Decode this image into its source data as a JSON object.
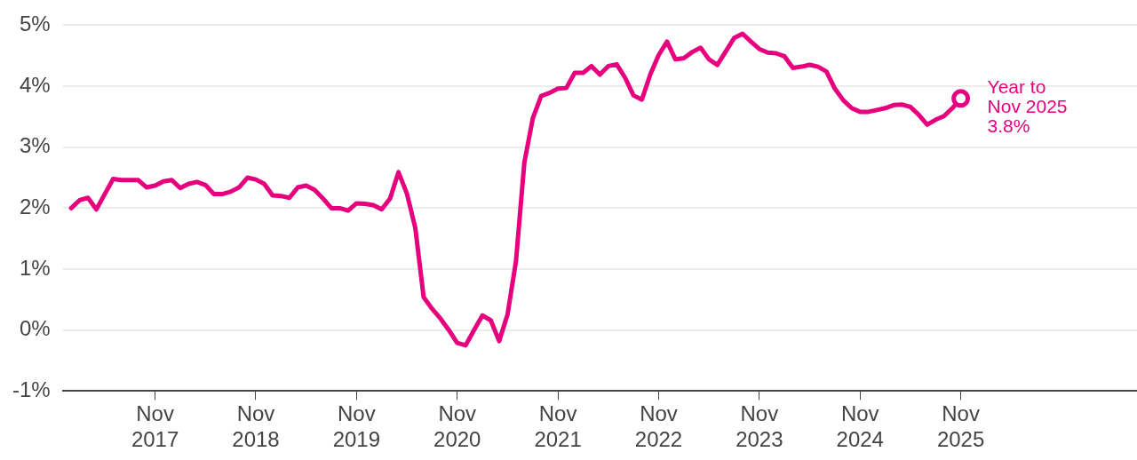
{
  "chart_data": {
    "type": "line",
    "x": [
      "2017-01",
      "2017-02",
      "2017-03",
      "2017-04",
      "2017-05",
      "2017-06",
      "2017-07",
      "2017-08",
      "2017-09",
      "2017-10",
      "2017-11",
      "2017-12",
      "2018-01",
      "2018-02",
      "2018-03",
      "2018-04",
      "2018-05",
      "2018-06",
      "2018-07",
      "2018-08",
      "2018-09",
      "2018-10",
      "2018-11",
      "2018-12",
      "2019-01",
      "2019-02",
      "2019-03",
      "2019-04",
      "2019-05",
      "2019-06",
      "2019-07",
      "2019-08",
      "2019-09",
      "2019-10",
      "2019-11",
      "2019-12",
      "2020-01",
      "2020-02",
      "2020-03",
      "2020-04",
      "2020-05",
      "2020-06",
      "2020-07",
      "2020-08",
      "2020-09",
      "2020-10",
      "2020-11",
      "2020-12",
      "2021-01",
      "2021-02",
      "2021-03",
      "2021-04",
      "2021-05",
      "2021-06",
      "2021-07",
      "2021-08",
      "2021-09",
      "2021-10",
      "2021-11",
      "2021-12",
      "2022-01",
      "2022-02",
      "2022-03",
      "2022-04",
      "2022-05",
      "2022-06",
      "2022-07",
      "2022-08",
      "2022-09",
      "2022-10",
      "2022-11",
      "2022-12",
      "2023-01",
      "2023-02",
      "2023-03",
      "2023-04",
      "2023-05",
      "2023-06",
      "2023-07",
      "2023-08",
      "2023-09",
      "2023-10",
      "2023-11",
      "2023-12",
      "2024-01",
      "2024-02",
      "2024-03",
      "2024-04",
      "2024-05",
      "2024-06",
      "2024-07",
      "2024-08",
      "2024-09",
      "2024-10",
      "2024-11",
      "2024-12",
      "2025-01",
      "2025-02",
      "2025-03",
      "2025-04",
      "2025-05",
      "2025-06",
      "2025-07",
      "2025-08",
      "2025-09",
      "2025-10",
      "2025-11"
    ],
    "series": [
      {
        "color": "#e6007e",
        "values": [
          2.0,
          2.13,
          2.17,
          1.98,
          2.23,
          2.48,
          2.46,
          2.46,
          2.46,
          2.34,
          2.37,
          2.44,
          2.46,
          2.33,
          2.4,
          2.43,
          2.38,
          2.23,
          2.23,
          2.27,
          2.34,
          2.5,
          2.47,
          2.4,
          2.21,
          2.2,
          2.17,
          2.34,
          2.37,
          2.3,
          2.16,
          2.0,
          2.0,
          1.96,
          2.08,
          2.07,
          2.05,
          1.98,
          2.16,
          2.59,
          2.24,
          1.68,
          0.54,
          0.35,
          0.19,
          0.0,
          -0.21,
          -0.25,
          0.0,
          0.24,
          0.16,
          -0.18,
          0.26,
          1.13,
          2.75,
          3.47,
          3.84,
          3.89,
          3.96,
          3.97,
          4.22,
          4.22,
          4.33,
          4.19,
          4.33,
          4.36,
          4.14,
          3.85,
          3.78,
          4.19,
          4.51,
          4.73,
          4.44,
          4.46,
          4.56,
          4.63,
          4.44,
          4.35,
          4.57,
          4.79,
          4.86,
          4.73,
          4.61,
          4.55,
          4.54,
          4.49,
          4.3,
          4.32,
          4.35,
          4.32,
          4.24,
          3.96,
          3.77,
          3.64,
          3.58,
          3.58,
          3.61,
          3.64,
          3.69,
          3.7,
          3.66,
          3.53,
          3.37,
          3.45,
          3.51,
          3.64,
          3.8
        ]
      }
    ],
    "xlim": [
      "2016-12",
      "2027-08"
    ],
    "xticks": [
      {
        "value": "2017-11",
        "label": "Nov 2017"
      },
      {
        "value": "2018-11",
        "label": "Nov 2018"
      },
      {
        "value": "2019-11",
        "label": "Nov 2019"
      },
      {
        "value": "2020-11",
        "label": "Nov 2020"
      },
      {
        "value": "2021-11",
        "label": "Nov 2021"
      },
      {
        "value": "2022-11",
        "label": "Nov 2022"
      },
      {
        "value": "2023-11",
        "label": "Nov 2023"
      },
      {
        "value": "2024-11",
        "label": "Nov 2024"
      },
      {
        "value": "2025-11",
        "label": "Nov 2025"
      }
    ],
    "ylim": [
      -1,
      5
    ],
    "yticks": [
      {
        "value": -1,
        "label": "-1%"
      },
      {
        "value": 0,
        "label": "0%"
      },
      {
        "value": 1,
        "label": "1%"
      },
      {
        "value": 2,
        "label": "2%"
      },
      {
        "value": 3,
        "label": "3%"
      },
      {
        "value": 4,
        "label": "4%"
      },
      {
        "value": 5,
        "label": "5%"
      }
    ],
    "grid": "y",
    "legend": false,
    "marker": "none",
    "line_style": "solid",
    "annotations": [
      {
        "text": "Year to\nNov 2025\n3.8%",
        "x": "2025-11",
        "y": 3.8
      }
    ]
  }
}
